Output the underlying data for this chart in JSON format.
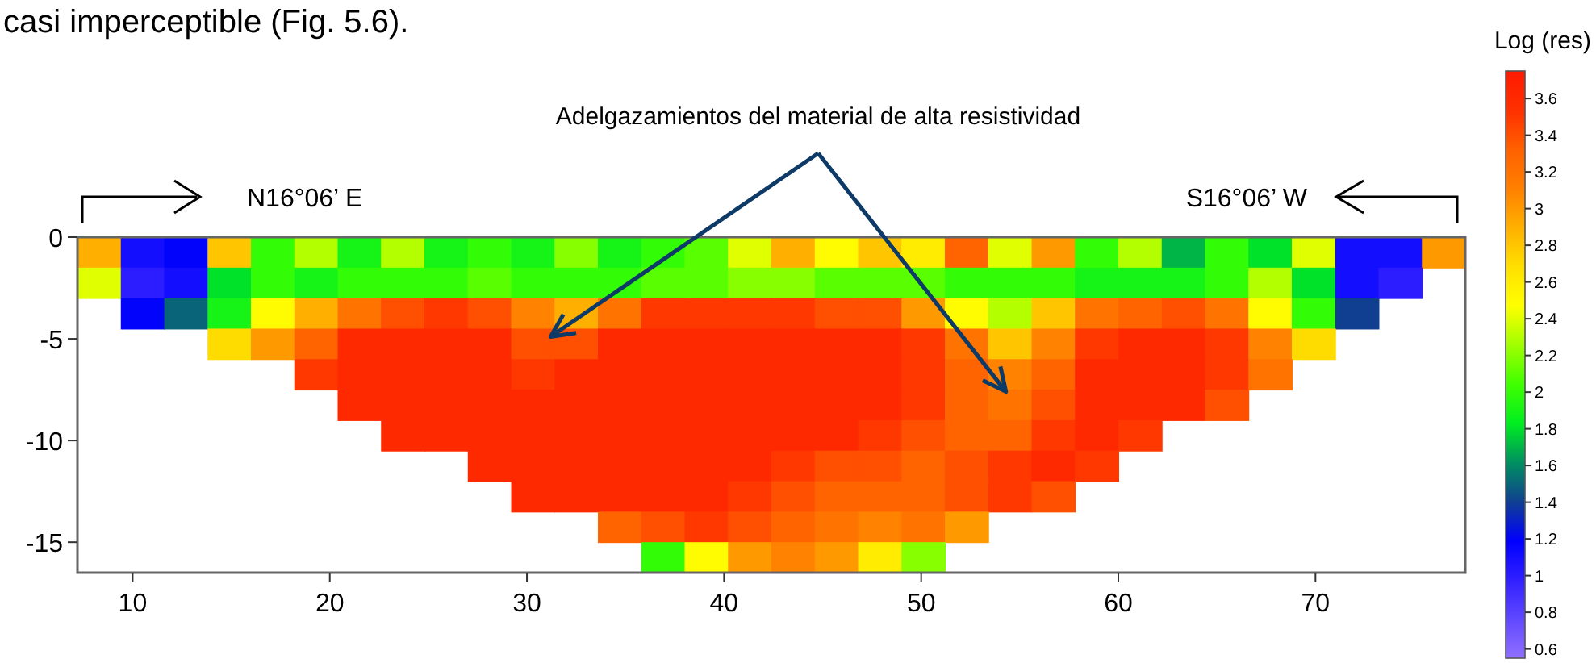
{
  "chart_data": {
    "type": "heatmap",
    "clabel": "Log (res)",
    "annotations": [
      "casi imperceptible (Fig. 5.6).",
      "Adelgazamientos del material de alta resistividad",
      "N16°06’ E",
      "S16°06’ W"
    ],
    "xlim": [
      7.2,
      77.6
    ],
    "xticks": [
      10,
      20,
      30,
      40,
      50,
      60,
      70
    ],
    "ylim": [
      -16.5,
      0
    ],
    "yticks": [
      0,
      -5,
      -10,
      -15
    ],
    "clim": [
      0.55,
      3.75
    ],
    "cticks": [
      0.6,
      0.8,
      1,
      1.2,
      1.4,
      1.6,
      1.8,
      2,
      2.2,
      2.4,
      2.6,
      2.8,
      3,
      3.2,
      3.4,
      3.6
    ],
    "colors": [
      "#9070ff",
      "#6048ff",
      "#3020ff",
      "#0000ff",
      "#104090",
      "#009060",
      "#00ee20",
      "#40ff00",
      "#a0ff00",
      "#ffff00",
      "#ffe000",
      "#ffb000",
      "#ff8000",
      "#ff6000",
      "#ff3000",
      "#ff1a00"
    ],
    "cells": [
      [
        2.9,
        1.1,
        1.2,
        2.8,
        2.0,
        2.3,
        1.9,
        2.3,
        1.9,
        2.0,
        1.9,
        2.2,
        1.9,
        2.0,
        2.1,
        2.4,
        2.9,
        2.5,
        2.8,
        2.6,
        3.3,
        2.4,
        3.0,
        2.0,
        2.3,
        1.7,
        2.0,
        1.8,
        2.4,
        1.1,
        1.1,
        3.0
      ],
      [
        2.4,
        1.0,
        1.1,
        1.8,
        2.0,
        1.9,
        2.0,
        2.0,
        2.0,
        2.1,
        2.0,
        2.0,
        2.0,
        2.1,
        2.1,
        2.2,
        2.2,
        2.1,
        2.1,
        2.1,
        2.0,
        2.0,
        2.0,
        1.9,
        1.9,
        1.9,
        2.0,
        2.3,
        1.8,
        1.1,
        1.0,
        null
      ],
      [
        null,
        1.2,
        1.5,
        1.9,
        2.5,
        2.9,
        3.2,
        3.4,
        3.5,
        3.4,
        3.1,
        2.9,
        3.2,
        3.5,
        3.5,
        3.5,
        3.5,
        3.4,
        3.4,
        3.0,
        2.5,
        2.3,
        2.8,
        3.2,
        3.3,
        3.4,
        3.2,
        2.5,
        2.0,
        1.4,
        null,
        null
      ],
      [
        null,
        null,
        null,
        2.7,
        3.0,
        3.3,
        3.6,
        3.6,
        3.6,
        3.6,
        3.4,
        3.4,
        3.6,
        3.6,
        3.6,
        3.6,
        3.6,
        3.6,
        3.6,
        3.5,
        3.2,
        2.8,
        3.1,
        3.5,
        3.6,
        3.6,
        3.5,
        3.1,
        2.7,
        null,
        null,
        null
      ],
      [
        null,
        null,
        null,
        null,
        null,
        3.5,
        3.6,
        3.6,
        3.6,
        3.6,
        3.5,
        3.6,
        3.6,
        3.6,
        3.6,
        3.6,
        3.6,
        3.6,
        3.6,
        3.5,
        3.3,
        3.1,
        3.3,
        3.6,
        3.6,
        3.6,
        3.5,
        3.2,
        null,
        null,
        null,
        null
      ],
      [
        null,
        null,
        null,
        null,
        null,
        null,
        3.6,
        3.6,
        3.6,
        3.6,
        3.6,
        3.6,
        3.6,
        3.6,
        3.6,
        3.6,
        3.6,
        3.6,
        3.6,
        3.5,
        3.3,
        3.2,
        3.4,
        3.6,
        3.6,
        3.6,
        3.4,
        null,
        null,
        null,
        null,
        null
      ],
      [
        null,
        null,
        null,
        null,
        null,
        null,
        null,
        3.6,
        3.6,
        3.6,
        3.6,
        3.6,
        3.6,
        3.6,
        3.6,
        3.6,
        3.6,
        3.6,
        3.5,
        3.4,
        3.3,
        3.3,
        3.5,
        3.6,
        3.5,
        null,
        null,
        null,
        null,
        null,
        null,
        null
      ],
      [
        null,
        null,
        null,
        null,
        null,
        null,
        null,
        null,
        null,
        3.6,
        3.6,
        3.6,
        3.6,
        3.6,
        3.6,
        3.6,
        3.5,
        3.4,
        3.4,
        3.3,
        3.4,
        3.5,
        3.6,
        3.5,
        null,
        null,
        null,
        null,
        null,
        null,
        null,
        null
      ],
      [
        null,
        null,
        null,
        null,
        null,
        null,
        null,
        null,
        null,
        null,
        3.6,
        3.6,
        3.6,
        3.6,
        3.6,
        3.5,
        3.4,
        3.3,
        3.3,
        3.3,
        3.4,
        3.5,
        3.4,
        null,
        null,
        null,
        null,
        null,
        null,
        null,
        null,
        null
      ],
      [
        null,
        null,
        null,
        null,
        null,
        null,
        null,
        null,
        null,
        null,
        null,
        null,
        3.3,
        3.4,
        3.5,
        3.4,
        3.3,
        3.2,
        3.1,
        3.2,
        3.0,
        null,
        null,
        null,
        null,
        null,
        null,
        null,
        null,
        null,
        null,
        null
      ],
      [
        null,
        null,
        null,
        null,
        null,
        null,
        null,
        null,
        null,
        null,
        null,
        null,
        null,
        2.0,
        2.5,
        3.0,
        3.1,
        3.0,
        2.6,
        2.2,
        null,
        null,
        null,
        null,
        null,
        null,
        null,
        null,
        null,
        null,
        null,
        null
      ]
    ]
  }
}
